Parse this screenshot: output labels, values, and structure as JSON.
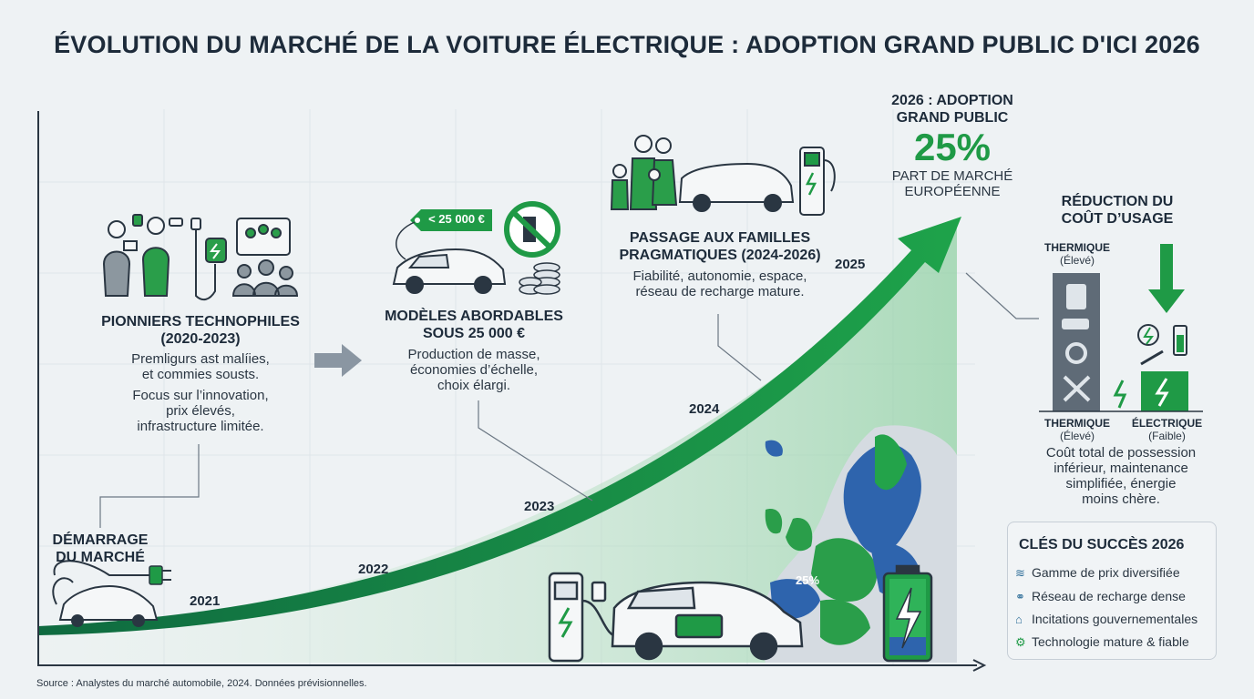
{
  "title": "ÉVOLUTION DU MARCHÉ DE LA VOITURE ÉLECTRIQUE : ADOPTION GRAND PUBLIC D'ICI 2026",
  "start": {
    "title_line1": "DÉMARRAGE",
    "title_line2": "DU MARCHÉ"
  },
  "years": {
    "y2021": "2021",
    "y2022": "2022",
    "y2023": "2023",
    "y2024": "2024",
    "y2025": "2025"
  },
  "pioneers": {
    "title_line1": "PIONNIERS TECHNOPHILES",
    "title_line2": "(2020-2023)",
    "text_line1": "Premligurs ast malíies,",
    "text_line2": "et commies sousts.",
    "text_line3": "Focus sur l’innovation,",
    "text_line4": "prix élevés,",
    "text_line5": "infrastructure limitée."
  },
  "affordable": {
    "price_tag": "< 25 000 €",
    "title_line1": "MODÈLES ABORDABLES",
    "title_line2": "SOUS 25 000 €",
    "text_line1": "Production de masse,",
    "text_line2": "économies d’échelle,",
    "text_line3": "choix élargi."
  },
  "families": {
    "title_line1": "PASSAGE AUX FAMILLES",
    "title_line2": "PRAGMATIQUES (2024-2026)",
    "text_line1": "Fiabilité, autonomie, espace,",
    "text_line2": "réseau de recharge mature."
  },
  "adoption": {
    "title_line1": "2026 : ADOPTION",
    "title_line2": "GRAND PUBLIC",
    "value": "25%",
    "sub_line1": "PART DE MARCHÉ",
    "sub_line2": "EUROPÉENNE",
    "map_label": "25%"
  },
  "cost": {
    "title_line1": "RÉDUCTION DU",
    "title_line2": "COÛT D’USAGE",
    "thermal_top": "THERMIQUE",
    "thermal_top_sub": "(Élevé)",
    "thermal_bottom": "THERMIQUE",
    "thermal_bottom_sub": "(Élevé)",
    "electric": "ÉLECTRIQUE",
    "electric_sub": "(Faible)",
    "text_line1": "Coût total de possession",
    "text_line2": "inférieur, maintenance",
    "text_line3": "simplifiée, énergie",
    "text_line4": "moins chère."
  },
  "keys": {
    "title": "CLÉS DU SUCCÈS 2026",
    "items": [
      "Gamme de prix diversifiée",
      "Réseau de recharge dense",
      "Incitations gouvernementales",
      "Technologie mature & fiable"
    ]
  },
  "source": "Source : Analystes du marché automobile, 2024. Données prévisionnelles.",
  "colors": {
    "green": "#1f9a46",
    "dark_green": "#136f33",
    "navy": "#1d2b3a",
    "blue": "#2d5fa8",
    "light_green": "#cfe9d6"
  }
}
